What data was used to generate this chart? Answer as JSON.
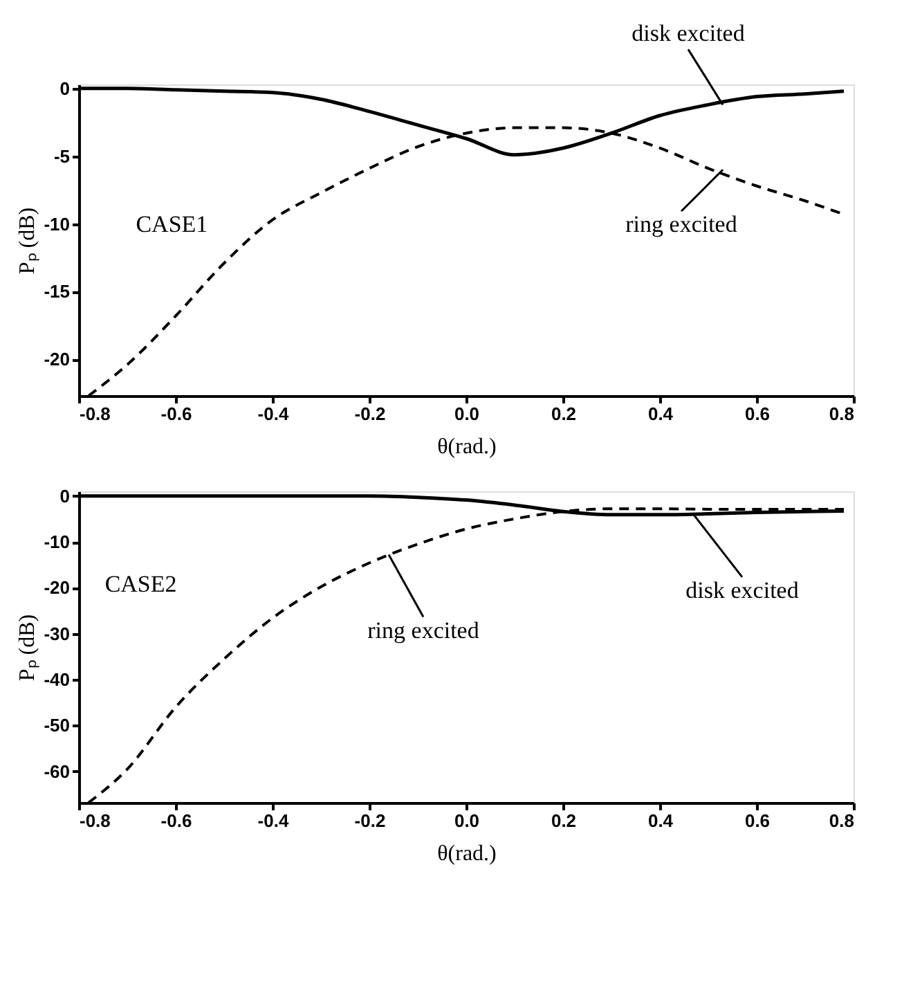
{
  "chart_data": [
    {
      "type": "line",
      "xlabel": "θ(rad.)",
      "ylabel": "Pₚ (dB)",
      "xlim": [
        -0.8,
        0.8
      ],
      "xticks": [
        -0.8,
        -0.6,
        -0.4,
        -0.2,
        {
          "value": 0,
          "label": "0.0"
        },
        0.2,
        0.4,
        0.6,
        0.8
      ],
      "ylim": [
        -22.7,
        0.3
      ],
      "yticks": [
        0,
        -5,
        -10,
        -15,
        -20
      ],
      "grid": false,
      "marker": "none",
      "series": [
        {
          "color": "#000000",
          "line_style": "solid",
          "x": [
            -0.8,
            -0.7,
            -0.6,
            -0.5,
            -0.4,
            -0.3,
            -0.2,
            -0.1,
            0.0,
            0.1,
            0.2,
            0.3,
            0.4,
            0.5,
            0.6,
            0.7,
            0.78
          ],
          "values": [
            0,
            0,
            -0.1,
            -0.2,
            -0.3,
            -0.8,
            -1.7,
            -2.7,
            -3.7,
            -4.9,
            -4.4,
            -3.3,
            -2.0,
            -1.2,
            -0.6,
            -0.4,
            -0.2
          ]
        },
        {
          "color": "#000000",
          "line_style": "dashed",
          "x": [
            -0.78,
            -0.7,
            -0.6,
            -0.5,
            -0.4,
            -0.3,
            -0.2,
            -0.1,
            0.0,
            0.1,
            0.2,
            0.3,
            0.4,
            0.5,
            0.6,
            0.7,
            0.78
          ],
          "values": [
            -22.7,
            -20.4,
            -16.8,
            -12.9,
            -9.7,
            -7.7,
            -5.9,
            -4.3,
            -3.3,
            -2.9,
            -2.9,
            -3.3,
            -4.4,
            -5.9,
            -7.2,
            -8.3,
            -9.3
          ]
        }
      ],
      "annotations": [
        {
          "text": "disk excited",
          "x": 0.53,
          "y": -1.2
        },
        {
          "text": "ring excited",
          "x": 0.53,
          "y": -6.0
        },
        "CASE1"
      ]
    },
    {
      "type": "line",
      "xlabel": "θ(rad.)",
      "ylabel": "Pₚ (dB)",
      "xlim": [
        -0.8,
        0.8
      ],
      "xticks": [
        -0.8,
        -0.6,
        -0.4,
        -0.2,
        {
          "value": 0,
          "label": "0.0"
        },
        0.2,
        0.4,
        0.6,
        0.8
      ],
      "ylim": [
        -66.8,
        1
      ],
      "yticks": [
        0,
        -10,
        -20,
        -30,
        -40,
        -50,
        -60
      ],
      "grid": false,
      "marker": "none",
      "series": [
        {
          "color": "#000000",
          "line_style": "solid",
          "x": [
            -0.8,
            -0.6,
            -0.4,
            -0.2,
            -0.1,
            0.0,
            0.1,
            0.2,
            0.3,
            0.4,
            0.5,
            0.6,
            0.7,
            0.78
          ],
          "values": [
            0,
            0,
            0,
            0,
            -0.3,
            -0.9,
            -2.0,
            -3.4,
            -4.1,
            -4.1,
            -3.9,
            -3.6,
            -3.4,
            -3.3
          ]
        },
        {
          "color": "#000000",
          "line_style": "dashed",
          "x": [
            -0.78,
            -0.7,
            -0.6,
            -0.5,
            -0.4,
            -0.3,
            -0.2,
            -0.1,
            0.0,
            0.1,
            0.2,
            0.3,
            0.4,
            0.5,
            0.6,
            0.7,
            0.78
          ],
          "values": [
            -66.8,
            -59.5,
            -46.0,
            -35.5,
            -26.6,
            -19.8,
            -14.6,
            -10.5,
            -7.2,
            -5.0,
            -3.4,
            -2.8,
            -2.8,
            -2.9,
            -2.9,
            -2.9,
            -2.9
          ]
        }
      ],
      "annotations": [
        {
          "text": "ring excited",
          "x": -0.16,
          "y": -12.8
        },
        {
          "text": "disk excited",
          "x": 0.47,
          "y": -4.1
        },
        "CASE2"
      ]
    }
  ]
}
